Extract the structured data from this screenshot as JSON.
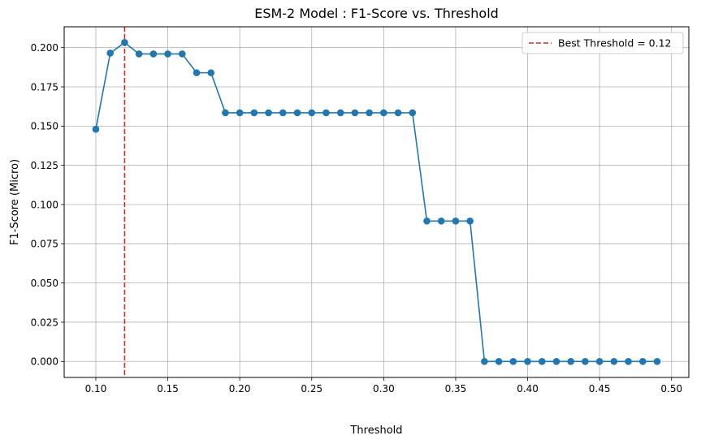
{
  "chart_data": {
    "type": "line",
    "title": "ESM-2 Model : F1-Score vs. Threshold",
    "xlabel": "Threshold",
    "ylabel": "F1-Score (Micro)",
    "xlim": [
      0.078,
      0.512
    ],
    "ylim": [
      -0.0102,
      0.2133
    ],
    "x_ticks": [
      0.1,
      0.15,
      0.2,
      0.25,
      0.3,
      0.35,
      0.4,
      0.45,
      0.5
    ],
    "x_tick_labels": [
      "0.10",
      "0.15",
      "0.20",
      "0.25",
      "0.30",
      "0.35",
      "0.40",
      "0.45",
      "0.50"
    ],
    "y_ticks": [
      0.0,
      0.025,
      0.05,
      0.075,
      0.1,
      0.125,
      0.15,
      0.175,
      0.2
    ],
    "y_tick_labels": [
      "0.000",
      "0.025",
      "0.050",
      "0.075",
      "0.100",
      "0.125",
      "0.150",
      "0.175",
      "0.200"
    ],
    "grid": true,
    "legend_position": "top-right",
    "series": [
      {
        "color": "#1f77b4",
        "x": [
          0.1,
          0.11,
          0.12,
          0.13,
          0.14,
          0.15,
          0.16,
          0.17,
          0.18,
          0.19,
          0.2,
          0.21,
          0.22,
          0.23,
          0.24,
          0.25,
          0.26,
          0.27,
          0.28,
          0.29,
          0.3,
          0.31,
          0.32,
          0.33,
          0.34,
          0.35,
          0.36,
          0.37,
          0.38,
          0.39,
          0.4,
          0.41,
          0.42,
          0.43,
          0.44,
          0.45,
          0.46,
          0.47,
          0.48,
          0.49
        ],
        "values": [
          0.148,
          0.1965,
          0.2033,
          0.196,
          0.196,
          0.196,
          0.196,
          0.184,
          0.184,
          0.1585,
          0.1585,
          0.1585,
          0.1585,
          0.1585,
          0.1585,
          0.1585,
          0.1585,
          0.1585,
          0.1585,
          0.1585,
          0.1585,
          0.1585,
          0.1585,
          0.0895,
          0.0895,
          0.0895,
          0.0895,
          0.0,
          0.0,
          0.0,
          0.0,
          0.0,
          0.0,
          0.0,
          0.0,
          0.0,
          0.0,
          0.0,
          0.0,
          0.0
        ]
      }
    ],
    "reference_line": {
      "name": "Best Threshold = 0.12",
      "x": 0.12,
      "color": "#d62728",
      "style": "dashed"
    }
  }
}
